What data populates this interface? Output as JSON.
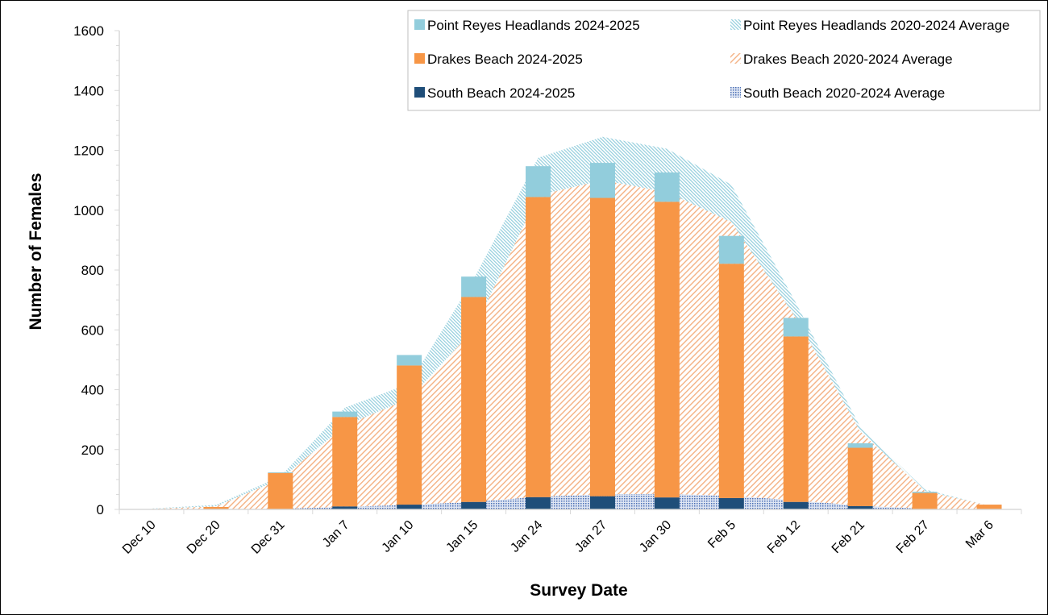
{
  "chart_data": {
    "type": "bar",
    "stacked": true,
    "title": "",
    "xlabel": "Survey Date",
    "ylabel": "Number of Females",
    "ylim": [
      0,
      1600
    ],
    "yticks": [
      0,
      200,
      400,
      600,
      800,
      1000,
      1200,
      1400,
      1600
    ],
    "grid": false,
    "legend_position": "top-right",
    "categories": [
      "Dec 10",
      "Dec 20",
      "Dec 31",
      "Jan 7",
      "Jan 10",
      "Jan 15",
      "Jan 24",
      "Jan 27",
      "Jan 30",
      "Feb 5",
      "Feb 12",
      "Feb 21",
      "Feb 27",
      "Mar 6"
    ],
    "bar_series": [
      {
        "name": "South Beach 2024-2025",
        "color": "#1f4e79",
        "values": [
          0,
          0,
          0,
          10,
          16,
          25,
          41,
          44,
          40,
          38,
          25,
          11,
          0,
          0
        ]
      },
      {
        "name": "Drakes Beach 2024-2025",
        "color": "#f79646",
        "values": [
          0,
          8,
          122,
          299,
          465,
          685,
          1003,
          997,
          988,
          783,
          553,
          195,
          55,
          16
        ]
      },
      {
        "name": "Point Reyes Headlands 2024-2025",
        "color": "#92cddc",
        "values": [
          0,
          0,
          2,
          18,
          35,
          68,
          103,
          117,
          98,
          93,
          62,
          15,
          4,
          0
        ]
      }
    ],
    "area_series": [
      {
        "name": "South Beach 2020-2024 Average",
        "color": "#4a6fb5",
        "pattern": "dots",
        "values": [
          0,
          0,
          2,
          8,
          15,
          25,
          42,
          50,
          52,
          45,
          30,
          12,
          2,
          0
        ]
      },
      {
        "name": "Drakes Beach 2020-2024 Average",
        "color": "#f4b183",
        "pattern": "diagonal",
        "values": [
          2,
          10,
          98,
          272,
          355,
          575,
          1008,
          1050,
          1008,
          915,
          610,
          248,
          60,
          12
        ]
      },
      {
        "name": "Point Reyes Headlands 2020-2024 Average",
        "color": "#92cddc",
        "pattern": "diagonal-fine",
        "values": [
          1,
          5,
          10,
          60,
          50,
          170,
          125,
          145,
          145,
          125,
          50,
          15,
          5,
          0
        ]
      }
    ],
    "legend": [
      "Point Reyes Headlands 2024-2025",
      "Point Reyes Headlands 2020-2024 Average",
      "Drakes Beach 2024-2025",
      "Drakes Beach 2020-2024 Average",
      "South Beach 2024-2025",
      "South Beach 2020-2024 Average"
    ]
  }
}
